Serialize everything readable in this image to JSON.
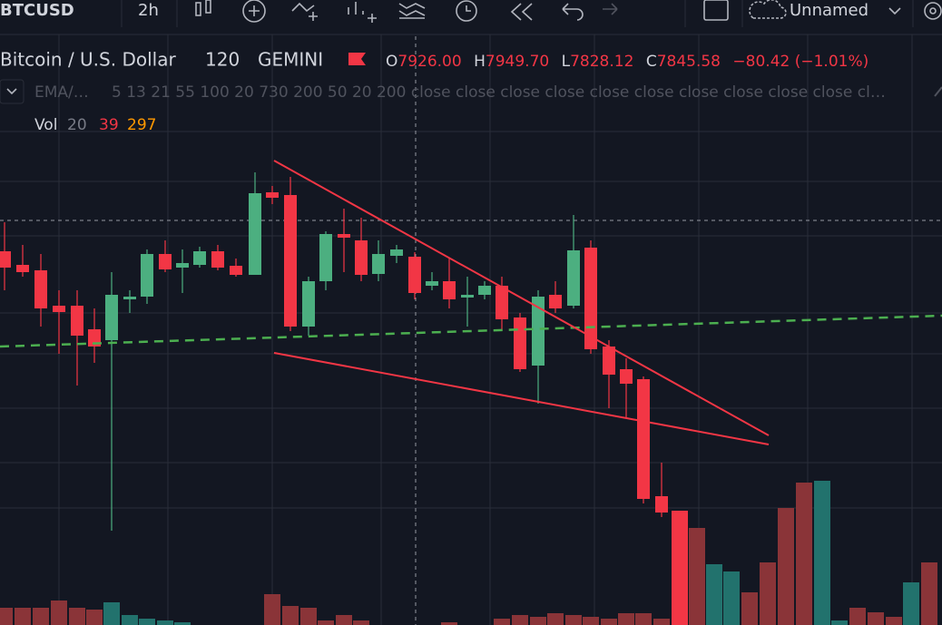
{
  "toolbar": {
    "symbol": "BTCUSD",
    "interval": "2h",
    "layout_name": "Unnamed"
  },
  "legend": {
    "title": "Bitcoin / U.S. Dollar",
    "resolution": "120",
    "exchange": "GEMINI",
    "open_label": "O",
    "open": "7926.00",
    "high_label": "H",
    "high": "7949.70",
    "low_label": "L",
    "low": "7828.12",
    "close_label": "C",
    "close": "7845.58",
    "change": "−80.42 (−1.01%)"
  },
  "indicators": {
    "ema_name": "EMA/…",
    "ema_params": "5 13 21 55 100 20 730 200 50 20 200 close close close close close close close close close close cl…",
    "vol_name": "Vol",
    "vol_length": "20",
    "vol_value_1": "39",
    "vol_value_2": "297"
  }
}
